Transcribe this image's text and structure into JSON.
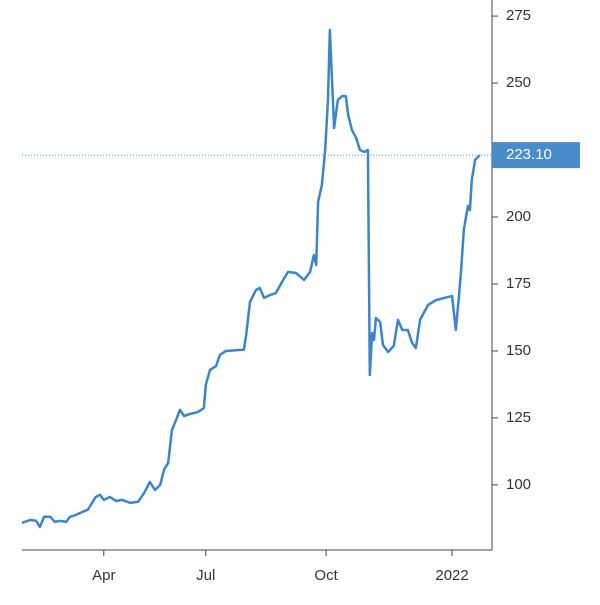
{
  "chart_data": {
    "type": "line",
    "series": [
      {
        "color": "#3d85c6",
        "x": [
          0,
          1.7,
          3.0,
          3.8,
          4.7,
          6.0,
          7.0,
          8.1,
          9.4,
          10.2,
          11.5,
          12.8,
          14.0,
          14.9,
          15.7,
          16.6,
          17.4,
          18.7,
          20.0,
          21.3,
          23.0,
          24.7,
          26.0,
          27.2,
          28.3,
          29.4,
          30.2,
          31.1,
          31.9,
          32.8,
          33.6,
          34.5,
          35.7,
          37.4,
          38.7,
          39.1,
          40.0,
          41.3,
          42.1,
          43.4,
          46.4,
          47.2,
          47.7,
          48.5,
          49.8,
          50.6,
          51.5,
          52.8,
          54.0,
          55.3,
          56.6,
          58.3,
          60.0,
          61.3,
          62.1,
          62.6,
          63.0,
          63.8,
          64.5,
          65.1,
          65.5,
          66.2,
          66.4,
          67.2,
          68.1,
          68.9,
          69.4,
          70.2,
          71.1,
          71.9,
          72.8,
          73.6,
          74.0,
          74.5,
          74.9,
          75.3,
          76.2,
          76.8,
          77.9,
          79.1,
          80.0,
          80.9,
          82.1,
          83.0,
          83.8,
          84.7,
          86.4,
          88.1,
          89.8,
          91.5,
          92.3,
          92.8,
          93.4,
          94.0,
          94.5,
          94.9,
          95.3,
          95.7,
          96.4,
          97.4
        ],
        "values": [
          85.8,
          86.9,
          86.6,
          84.3,
          88.1,
          88.1,
          86.2,
          86.6,
          86.2,
          88.1,
          88.8,
          89.9,
          90.7,
          93.3,
          95.5,
          96.3,
          94.4,
          95.5,
          94.0,
          94.4,
          93.3,
          93.7,
          97.0,
          101.1,
          98.1,
          100,
          105.6,
          108.2,
          120.5,
          124.3,
          128.0,
          125.7,
          126.5,
          127.2,
          128.7,
          137.3,
          142.9,
          144.4,
          148.5,
          150,
          150.4,
          150.4,
          156.0,
          168.3,
          172.8,
          173.5,
          169.8,
          170.9,
          171.6,
          175.7,
          179.5,
          179.1,
          176.5,
          179.5,
          185.8,
          182.1,
          205.6,
          211.9,
          225,
          243.7,
          269.8,
          241.8,
          233.2,
          243.7,
          245.1,
          245.1,
          238.1,
          232.5,
          229.5,
          225,
          224.3,
          225,
          141.0,
          156.7,
          154.1,
          162.3,
          160.8,
          152.2,
          149.6,
          151.9,
          161.6,
          157.8,
          157.8,
          153.0,
          151.1,
          161.6,
          167.2,
          169.0,
          169.8,
          170.5,
          157.8,
          167.2,
          179.5,
          195.1,
          200.4,
          204.1,
          202.6,
          213.8,
          221.3,
          223.1
        ]
      }
    ],
    "last_value": {
      "value": 223.1,
      "label": "223.10",
      "color": "#4a8bc9"
    },
    "xlim": [
      0,
      100
    ],
    "xticks": [
      {
        "value": 17.4,
        "label": "Apr"
      },
      {
        "value": 39.1,
        "label": "Jul"
      },
      {
        "value": 64.7,
        "label": "Oct"
      },
      {
        "value": 91.5,
        "label": "2022"
      }
    ],
    "ylim": [
      75.7,
      281
    ],
    "yticks": [
      100,
      125,
      150,
      175,
      200,
      225,
      250,
      275
    ],
    "grid": false
  }
}
